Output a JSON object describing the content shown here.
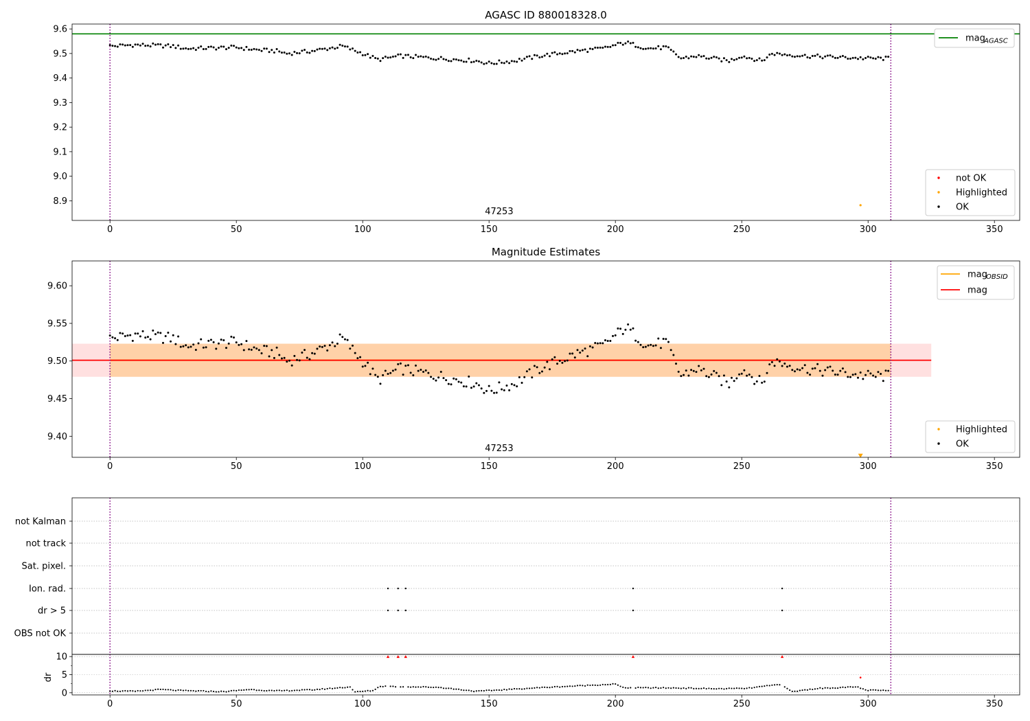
{
  "chart_data": [
    {
      "type": "scatter",
      "title": "AGASC ID 880018328.0",
      "xlim": [
        -15,
        360
      ],
      "ylim": [
        8.82,
        9.62
      ],
      "xticks": [
        0,
        50,
        100,
        150,
        200,
        250,
        300,
        350
      ],
      "yticks": [
        8.9,
        9.0,
        9.1,
        9.2,
        9.3,
        9.4,
        9.5,
        9.6
      ],
      "ytick_labels": [
        "8.9",
        "9.0",
        "9.1",
        "9.2",
        "9.3",
        "9.4",
        "9.5",
        "9.6"
      ],
      "obsid_label": "47253",
      "obsid_label_x": 154,
      "obsid_boundaries": [
        0,
        309
      ],
      "mag_agasc": 9.58,
      "series": [
        {
          "name": "not OK",
          "color": "#ff0000",
          "points": []
        },
        {
          "name": "Highlighted",
          "color": "#ffa500",
          "points": [
            [
              297,
              8.882
            ]
          ]
        },
        {
          "name": "OK",
          "color": "#000000",
          "knots": [
            [
              0,
              9.53
            ],
            [
              10,
              9.535
            ],
            [
              25,
              9.53
            ],
            [
              30,
              9.52
            ],
            [
              50,
              9.525
            ],
            [
              58,
              9.515
            ],
            [
              66,
              9.51
            ],
            [
              70,
              9.5
            ],
            [
              80,
              9.51
            ],
            [
              92,
              9.53
            ],
            [
              100,
              9.5
            ],
            [
              106,
              9.475
            ],
            [
              115,
              9.49
            ],
            [
              130,
              9.48
            ],
            [
              145,
              9.47
            ],
            [
              150,
              9.46
            ],
            [
              160,
              9.47
            ],
            [
              170,
              9.49
            ],
            [
              185,
              9.51
            ],
            [
              195,
              9.52
            ],
            [
              204,
              9.545
            ],
            [
              213,
              9.52
            ],
            [
              220,
              9.525
            ],
            [
              226,
              9.48
            ],
            [
              232,
              9.49
            ],
            [
              245,
              9.47
            ],
            [
              250,
              9.49
            ],
            [
              258,
              9.47
            ],
            [
              262,
              9.5
            ],
            [
              275,
              9.49
            ],
            [
              300,
              9.48
            ],
            [
              309,
              9.48
            ]
          ],
          "n": 309
        }
      ],
      "legend_lines": [
        {
          "name": "mag",
          "sub": "AGASC",
          "color": "#008000"
        }
      ],
      "legend_points": [
        "not OK",
        "Highlighted",
        "OK"
      ]
    },
    {
      "type": "scatter",
      "title": "Magnitude Estimates",
      "xlim": [
        -15,
        360
      ],
      "ylim": [
        9.372,
        9.633
      ],
      "xticks": [
        0,
        50,
        100,
        150,
        200,
        250,
        300,
        350
      ],
      "yticks": [
        9.4,
        9.45,
        9.5,
        9.55,
        9.6
      ],
      "ytick_labels": [
        "9.40",
        "9.45",
        "9.50",
        "9.55",
        "9.60"
      ],
      "obsid_label": "47253",
      "obsid_label_x": 154,
      "obsid_boundaries": [
        0,
        309
      ],
      "mag": 9.501,
      "mag_band": [
        9.479,
        9.523
      ],
      "mag_obsid": 9.501,
      "obsid_band": [
        9.479,
        9.523
      ],
      "mag_range_x": [
        -15,
        325
      ],
      "series": [
        {
          "name": "Highlighted",
          "color": "#ffa500",
          "points": [
            [
              297,
              9.374
            ]
          ]
        },
        {
          "name": "OK",
          "color": "#000000",
          "knots": [
            [
              0,
              9.53
            ],
            [
              10,
              9.535
            ],
            [
              25,
              9.53
            ],
            [
              30,
              9.52
            ],
            [
              50,
              9.525
            ],
            [
              58,
              9.515
            ],
            [
              66,
              9.51
            ],
            [
              70,
              9.5
            ],
            [
              80,
              9.51
            ],
            [
              92,
              9.53
            ],
            [
              100,
              9.5
            ],
            [
              106,
              9.475
            ],
            [
              115,
              9.49
            ],
            [
              130,
              9.48
            ],
            [
              145,
              9.47
            ],
            [
              150,
              9.46
            ],
            [
              160,
              9.47
            ],
            [
              170,
              9.49
            ],
            [
              185,
              9.51
            ],
            [
              195,
              9.52
            ],
            [
              204,
              9.545
            ],
            [
              213,
              9.52
            ],
            [
              220,
              9.525
            ],
            [
              226,
              9.48
            ],
            [
              232,
              9.49
            ],
            [
              245,
              9.47
            ],
            [
              250,
              9.49
            ],
            [
              258,
              9.47
            ],
            [
              262,
              9.5
            ],
            [
              275,
              9.49
            ],
            [
              300,
              9.48
            ],
            [
              309,
              9.48
            ]
          ],
          "n": 309
        }
      ],
      "legend_lines": [
        {
          "name": "mag",
          "sub": "OBSID",
          "color": "#ffa500"
        },
        {
          "name": "mag",
          "sub": "",
          "color": "#ff0000"
        }
      ],
      "legend_points": [
        "Highlighted",
        "OK"
      ]
    },
    {
      "type": "scatter",
      "xlim": [
        -15,
        360
      ],
      "xticks": [
        0,
        50,
        100,
        150,
        200,
        250,
        300,
        350
      ],
      "obsid_boundaries": [
        0,
        309
      ],
      "flag_rows": [
        "not Kalman",
        "not track",
        "Sat. pixel.",
        "Ion. rad.",
        "dr > 5",
        "OBS not OK"
      ],
      "flags": {
        "Ion. rad.": [
          110,
          114,
          117,
          207,
          266
        ],
        "dr > 5": [
          110,
          114,
          117,
          207,
          266
        ]
      },
      "dr": {
        "ylabel": "dr",
        "ylim": [
          -0.6,
          10.6
        ],
        "yticks": [
          0,
          5,
          10
        ],
        "ytick_labels": [
          "0",
          "5",
          "10"
        ],
        "clipped": [
          110,
          114,
          117,
          207,
          266
        ],
        "clip_value": 10,
        "outlier": [
          297,
          4.2
        ],
        "knots": [
          [
            0,
            0.5
          ],
          [
            10,
            0.4
          ],
          [
            20,
            0.9
          ],
          [
            28,
            0.6
          ],
          [
            45,
            0.3
          ],
          [
            55,
            0.9
          ],
          [
            65,
            0.5
          ],
          [
            80,
            0.8
          ],
          [
            95,
            1.6
          ],
          [
            97,
            0.2
          ],
          [
            104,
            0.6
          ],
          [
            107,
            1.8
          ],
          [
            130,
            1.5
          ],
          [
            145,
            0.4
          ],
          [
            160,
            1.0
          ],
          [
            170,
            1.4
          ],
          [
            185,
            1.9
          ],
          [
            200,
            2.4
          ],
          [
            203,
            1.4
          ],
          [
            225,
            1.3
          ],
          [
            240,
            1.1
          ],
          [
            252,
            1.2
          ],
          [
            265,
            2.3
          ],
          [
            270,
            0.3
          ],
          [
            280,
            1.2
          ],
          [
            296,
            1.6
          ],
          [
            299,
            0.7
          ],
          [
            309,
            0.6
          ]
        ],
        "n": 309
      }
    }
  ]
}
